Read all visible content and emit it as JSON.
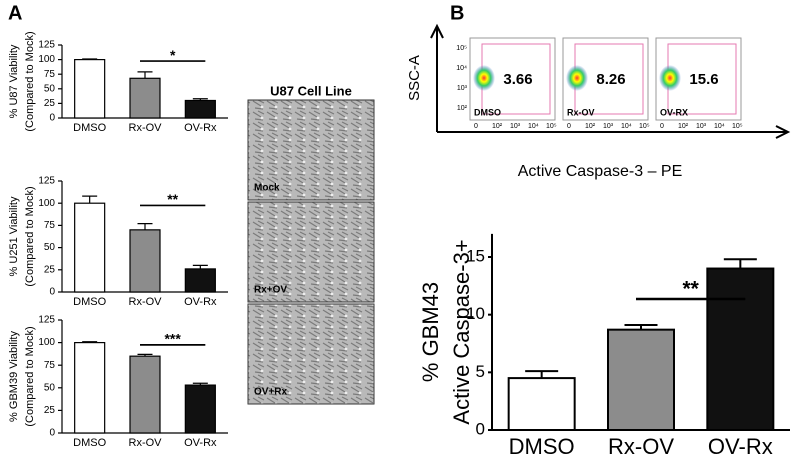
{
  "panel_labels": [
    "A",
    "B"
  ],
  "chart_data": [
    {
      "type": "bar",
      "ylabel": [
        "% U87 Viability",
        "(Compared to Mock)"
      ],
      "categories": [
        "DMSO",
        "Rx-OV",
        "OV-Rx"
      ],
      "values": [
        100,
        68,
        30
      ],
      "errors": [
        1,
        11,
        3
      ],
      "colors": [
        "#ffffff",
        "#8c8c8c",
        "#111111"
      ],
      "ylim": [
        0,
        125
      ],
      "yticks": [
        0,
        25,
        50,
        75,
        100,
        125
      ],
      "annotation": "*"
    },
    {
      "type": "bar",
      "ylabel": [
        "% U251 Viability",
        "(Compared to Mock)"
      ],
      "categories": [
        "DMSO",
        "Rx-OV",
        "OV-Rx"
      ],
      "values": [
        100,
        70,
        26
      ],
      "errors": [
        8,
        7,
        4
      ],
      "colors": [
        "#ffffff",
        "#8c8c8c",
        "#111111"
      ],
      "ylim": [
        0,
        125
      ],
      "yticks": [
        0,
        25,
        50,
        75,
        100,
        125
      ],
      "annotation": "**"
    },
    {
      "type": "bar",
      "ylabel": [
        "% GBM39 Viability",
        "(Compared to Mock)"
      ],
      "categories": [
        "DMSO",
        "Rx-OV",
        "OV-Rx"
      ],
      "values": [
        100,
        85,
        53
      ],
      "errors": [
        1,
        2,
        2
      ],
      "colors": [
        "#ffffff",
        "#8c8c8c",
        "#111111"
      ],
      "ylim": [
        0,
        125
      ],
      "yticks": [
        0,
        25,
        50,
        75,
        100,
        125
      ],
      "annotation": "***"
    },
    {
      "type": "bar",
      "ylabel": [
        "% GBM43",
        "Active Caspase-3+"
      ],
      "categories": [
        "DMSO",
        "Rx-OV",
        "OV-Rx"
      ],
      "values": [
        4.5,
        8.7,
        14.0
      ],
      "errors": [
        0.6,
        0.4,
        0.8
      ],
      "colors": [
        "#ffffff",
        "#8c8c8c",
        "#111111"
      ],
      "ylim": [
        0,
        17
      ],
      "yticks": [
        0,
        5,
        10,
        15
      ],
      "annotation": "**"
    }
  ],
  "micrographs": {
    "title": "U87 Cell Line",
    "labels": [
      "Mock",
      "Rx+OV",
      "OV+Rx"
    ]
  },
  "flow": {
    "ylabel": "SSC-A",
    "xlabel": "Active Caspase-3 – PE",
    "xticks": [
      "0",
      "10²",
      "10³",
      "10⁴",
      "10⁵"
    ],
    "yticks": [
      "10²",
      "10³",
      "10⁴",
      "10⁵"
    ],
    "panels": [
      {
        "label": "DMSO",
        "value": 3.66
      },
      {
        "label": "Rx-OV",
        "value": 8.26
      },
      {
        "label": "OV-RX",
        "value": 15.6
      }
    ]
  }
}
